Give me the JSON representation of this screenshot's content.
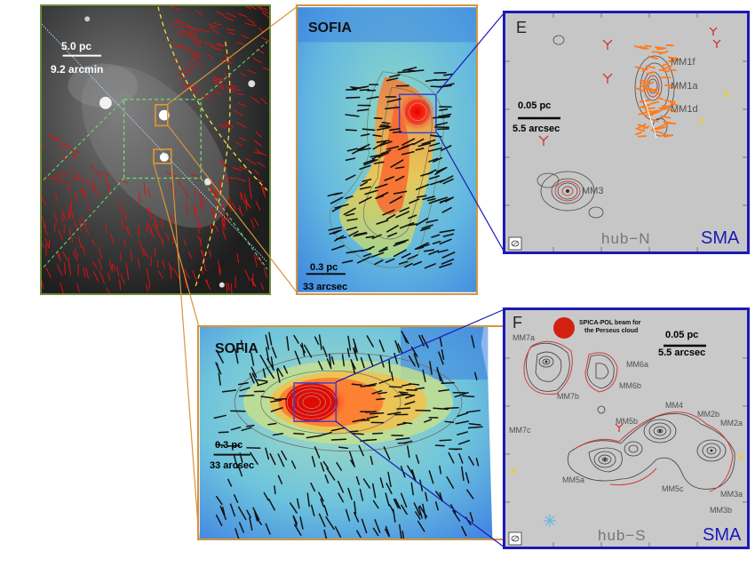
{
  "wide_panel": {
    "scale_pc": "5.0 pc",
    "scale_arcmin": "9.2 arcmin"
  },
  "sofia_north": {
    "title": "SOFIA",
    "scale_pc": "0.3 pc",
    "scale_arcsec": "33 arcsec"
  },
  "sma_north": {
    "letter": "E",
    "scale_pc": "0.05 pc",
    "scale_arcsec": "5.5 arcsec",
    "sources": [
      "MM1f",
      "MM1a",
      "MM1d",
      "MM3"
    ],
    "hub": "hub−N",
    "telescope": "SMA"
  },
  "sofia_south": {
    "title": "SOFIA",
    "scale_pc": "0.3 pc",
    "scale_arcsec": "33 arcsec"
  },
  "sma_south": {
    "letter": "F",
    "beam_note_line1": "SPICA-POL beam for",
    "beam_note_line2": "the Perseus cloud",
    "scale_pc": "0.05 pc",
    "scale_arcsec": "5.5 arcsec",
    "sources": [
      "MM7a",
      "MM6a",
      "MM6b",
      "MM7b",
      "MM7c",
      "MM5b",
      "MM4",
      "MM2b",
      "MM2a",
      "MM5a",
      "MM5c",
      "MM3a",
      "MM3b"
    ],
    "hub": "hub−S",
    "telescope": "SMA"
  },
  "colors": {
    "sma_frame": "#1a1ab8",
    "sofia_frame": "#d7953a",
    "wide_frame": "#6a8a3a",
    "vectors_red": "#e01010",
    "vectors_orange": "#ff7a1a",
    "contour_red": "#d43a3a"
  }
}
